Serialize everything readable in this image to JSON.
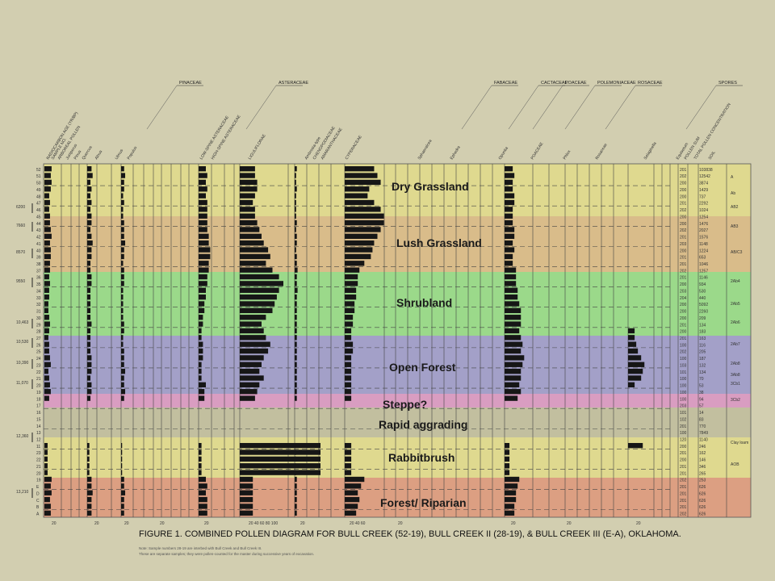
{
  "caption": "FIGURE 1.  COMBINED POLLEN DIAGRAM FOR BULL CREEK (52-19), BULL CREEK II (28-19), & BULL CREEK III (E-A), OKLAHOMA.",
  "notes": [
    "Note: Sample numbers 28-19 are interbed with Bull Creek and Bull Creek III.",
    "These are separate samples; they were pollen-counted for the master during successive years of excavation."
  ],
  "colors": {
    "dry_grassland": "#dfd98f",
    "lush_grassland": "#d9bc8a",
    "shrubland": "#9bd98a",
    "open_forest": "#a3a0c8",
    "steppe": "#d99dc1",
    "rapid_aggrading": "#c2bf9f",
    "rabbitbrush": "#dfd98f",
    "forest_riparian": "#dc9f82",
    "bar": "#161616",
    "background": "#d2ceb0"
  },
  "group_headers": [
    "PINACEAE",
    "ASTERACEAE",
    "FABACEAE",
    "CACTACEAE",
    "POACEAE",
    "POLEMONIACEAE",
    "ROSACEAE",
    "SPORES"
  ],
  "column_headers": [
    "RADIOCARBON AGE (YR/BP)",
    "SAMPLE NO.",
    "ARBOREAL POLLEN",
    "Juniperus",
    "Pinus",
    "Quercus",
    "Alnus",
    "Ulmus",
    "Populus",
    "LOW-SPINE ASTERACEAE",
    "HIGH-SPINE ASTERACEAE",
    "LIGULIFLORAE",
    "Ambrosia-type",
    "CHENOPODIACEAE",
    "AMARANTHACEAE",
    "CYPERACEAE",
    "Sphaeralcea",
    "Ephedra",
    "Opuntia",
    "POACEAE",
    "Phlox",
    "Rosaceae",
    "Selaginella",
    "Equisetum",
    "POLLEN SUM",
    "TOTAL POLLEN CONCENTRATION",
    "SOIL"
  ],
  "zones": [
    {
      "id": "dry_grassland",
      "label": "Dry Grassland"
    },
    {
      "id": "lush_grassland",
      "label": "Lush Grassland"
    },
    {
      "id": "shrubland",
      "label": "Shrubland"
    },
    {
      "id": "open_forest",
      "label": "Open Forest"
    },
    {
      "id": "steppe",
      "label": "Steppe?"
    },
    {
      "id": "rapid_aggrading",
      "label": "Rapid aggrading"
    },
    {
      "id": "rabbitbrush",
      "label": "Rabbitbrush"
    },
    {
      "id": "forest_riparian",
      "label": "Forest/ Riparian"
    }
  ],
  "radiocarbon_ages": [
    "6200",
    "7660",
    "8570",
    "9550",
    "10,463",
    "10,530",
    "10,390",
    "11,070",
    "12,360",
    "13,210"
  ],
  "axis_ticks": [
    "20",
    "20",
    "20",
    "20",
    "20",
    "20 40 60 80 100",
    "20",
    "20 40 60",
    "20",
    "20",
    "20",
    "20"
  ],
  "chart_data": {
    "type": "bar",
    "title": "FIGURE 1.  COMBINED POLLEN DIAGRAM FOR BULL CREEK (52-19), BULL CREEK II (28-19), & BULL CREEK III (E-A), OKLAHOMA.",
    "orientation": "horizontal (stratigraphic pollen diagram)",
    "samples": [
      "52",
      "51",
      "50",
      "49",
      "48",
      "47",
      "46",
      "45",
      "44",
      "43",
      "42",
      "41",
      "40",
      "39",
      "38",
      "37",
      "36",
      "35",
      "34",
      "33",
      "32",
      "31",
      "30",
      "29",
      "28",
      "27",
      "26",
      "25",
      "24",
      "23",
      "22",
      "21",
      "20",
      "19",
      "18",
      "17",
      "16",
      "15",
      "14",
      "13",
      "12",
      "11",
      "23",
      "22",
      "21",
      "20",
      "19",
      "E",
      "D",
      "C",
      "B",
      "A"
    ],
    "pollen_sum": [
      "201",
      "202",
      "200",
      "200",
      "200",
      "201",
      "202",
      "200",
      "200",
      "202",
      "201",
      "203",
      "200",
      "201",
      "201",
      "202",
      "201",
      "200",
      "203",
      "204",
      "200",
      "200",
      "200",
      "201",
      "200",
      "201",
      "100",
      "202",
      "100",
      "103",
      "101",
      "100",
      "100",
      "100",
      "100",
      "203",
      "101",
      "102",
      "201",
      "100",
      "120",
      "200",
      "201",
      "200",
      "201",
      "201",
      "202",
      "201",
      "201",
      "201",
      "201",
      "202"
    ],
    "concentration": [
      "103838",
      "12542",
      "3874",
      "1429",
      "737",
      "2292",
      "1024",
      "1254",
      "1476",
      "2027",
      "1576",
      "1148",
      "1224",
      "653",
      "1046",
      "1257",
      "1146",
      "934",
      "530",
      "440",
      "5092",
      "2260",
      "209",
      "134",
      "183",
      "163",
      "116",
      "205",
      "187",
      "132",
      "134",
      "70",
      "53",
      "38",
      "94",
      "57",
      "14",
      "83",
      "770",
      "7849",
      "1140",
      "246",
      "162",
      "146",
      "346",
      "265",
      "253",
      "626",
      "626",
      "626",
      "626",
      "626"
    ],
    "soil": [
      "A",
      "Ab",
      "AB2",
      "AB3",
      "AB/C3",
      "2Ab4",
      "2Ab5",
      "2Ab6",
      "2Ab7",
      "2Ab8",
      "3Ab8",
      "3Cb1",
      "3Cb2",
      "Clay loam",
      "AOB"
    ],
    "series": [
      {
        "name": "ARBOREAL POLLEN",
        "values": [
          9,
          8,
          9,
          8,
          6,
          7,
          6,
          7,
          7,
          8,
          9,
          7,
          8,
          8,
          7,
          7,
          6,
          7,
          6,
          6,
          5,
          5,
          6,
          7,
          6,
          5,
          6,
          6,
          7,
          8,
          5,
          6,
          7,
          8,
          6,
          0,
          0,
          0,
          0,
          0,
          0,
          4,
          4,
          4,
          4,
          4,
          9,
          8,
          9,
          7,
          8,
          8
        ]
      },
      {
        "name": "Pinus",
        "values": [
          4,
          5,
          3,
          4,
          3,
          4,
          3,
          4,
          4,
          3,
          4,
          5,
          4,
          4,
          3,
          3,
          4,
          4,
          3,
          3,
          3,
          3,
          3,
          4,
          3,
          3,
          3,
          3,
          4,
          4,
          4,
          3,
          4,
          4,
          3,
          0,
          0,
          0,
          0,
          0,
          0,
          2,
          2,
          2,
          2,
          2,
          4,
          4,
          5,
          4,
          4,
          4
        ]
      },
      {
        "name": "Quercus",
        "values": [
          3,
          4,
          3,
          3,
          2,
          3,
          2,
          2,
          3,
          3,
          3,
          4,
          3,
          3,
          2,
          3,
          3,
          3,
          2,
          2,
          2,
          2,
          2,
          3,
          3,
          2,
          2,
          3,
          3,
          3,
          4,
          3,
          3,
          4,
          3,
          0,
          0,
          0,
          0,
          0,
          0,
          1,
          1,
          1,
          1,
          1,
          3,
          3,
          4,
          3,
          3,
          3
        ]
      },
      {
        "name": "LOW-SPINE ASTERACEAE",
        "values": [
          5,
          6,
          5,
          6,
          5,
          6,
          6,
          6,
          6,
          6,
          7,
          7,
          8,
          8,
          7,
          7,
          6,
          6,
          5,
          5,
          4,
          4,
          3,
          3,
          2,
          2,
          3,
          3,
          3,
          2,
          2,
          2,
          5,
          4,
          4,
          0,
          0,
          0,
          0,
          0,
          0,
          2,
          2,
          2,
          2,
          2,
          5,
          6,
          5,
          6,
          6,
          6
        ]
      },
      {
        "name": "HIGH-SPINE ASTERACEAE",
        "values": [
          7,
          7,
          8,
          8,
          7,
          6,
          7,
          7,
          8,
          9,
          10,
          11,
          13,
          14,
          12,
          15,
          18,
          20,
          18,
          17,
          16,
          15,
          12,
          10,
          11,
          12,
          14,
          13,
          11,
          10,
          9,
          11,
          9,
          8,
          7,
          0,
          0,
          0,
          0,
          0,
          0,
          55,
          60,
          58,
          52,
          50,
          6,
          6,
          6,
          6,
          6,
          6
        ]
      },
      {
        "name": "Ambrosia-type",
        "values": [
          3,
          2,
          2,
          3,
          2,
          2,
          2,
          2,
          3,
          2,
          3,
          3,
          2,
          3,
          3,
          4,
          3,
          3,
          4,
          3,
          3,
          3,
          3,
          3,
          3,
          3,
          3,
          3,
          3,
          3,
          3,
          3,
          3,
          3,
          3,
          0,
          0,
          0,
          0,
          0,
          0,
          2,
          2,
          2,
          2,
          2,
          3,
          3,
          3,
          3,
          3,
          3
        ]
      },
      {
        "name": "CHENOPODIACEAE",
        "values": [
          18,
          20,
          22,
          15,
          14,
          18,
          22,
          24,
          24,
          22,
          20,
          18,
          17,
          16,
          12,
          9,
          8,
          8,
          7,
          7,
          6,
          6,
          5,
          5,
          4,
          4,
          5,
          5,
          4,
          4,
          4,
          4,
          4,
          4,
          4,
          0,
          0,
          0,
          0,
          0,
          0,
          4,
          4,
          4,
          4,
          4,
          12,
          10,
          8,
          9,
          8,
          7
        ]
      },
      {
        "name": "POACEAE",
        "values": [
          5,
          6,
          5,
          5,
          6,
          6,
          5,
          5,
          5,
          6,
          6,
          5,
          6,
          5,
          5,
          7,
          7,
          7,
          8,
          8,
          9,
          10,
          10,
          10,
          9,
          10,
          11,
          10,
          12,
          11,
          10,
          10,
          9,
          10,
          8,
          0,
          0,
          0,
          0,
          0,
          0,
          3,
          3,
          3,
          3,
          3,
          9,
          8,
          7,
          7,
          6,
          6
        ]
      },
      {
        "name": "Rosaceae",
        "values": [
          0,
          0,
          0,
          0,
          0,
          0,
          0,
          0,
          0,
          0,
          0,
          0,
          0,
          0,
          0,
          0,
          0,
          0,
          0,
          0,
          0,
          0,
          0,
          0,
          4,
          4,
          5,
          6,
          8,
          10,
          9,
          8,
          4,
          0,
          0,
          0,
          0,
          0,
          0,
          0,
          0,
          9,
          0,
          0,
          0,
          0,
          0,
          0,
          0,
          0,
          0,
          0
        ]
      }
    ],
    "xlabel": "",
    "ylabel": ""
  }
}
